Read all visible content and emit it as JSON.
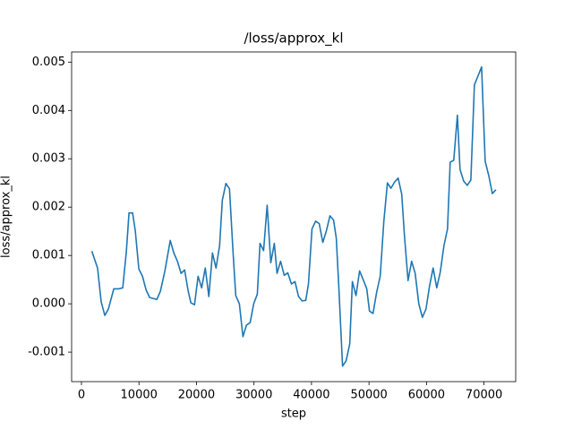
{
  "chart_data": {
    "type": "line",
    "title": "/loss/approx_kl",
    "x_label": "step",
    "y_label": "loss/approx_kl",
    "color": "#1f77b4",
    "x": [
      1800,
      2800,
      3430,
      4060,
      4680,
      5620,
      6550,
      7180,
      7800,
      8270,
      8890,
      9360,
      9980,
      10610,
      11230,
      11860,
      13100,
      13730,
      14510,
      15440,
      16070,
      16690,
      17320,
      17940,
      18560,
      19030,
      19660,
      20280,
      20900,
      21530,
      22150,
      22780,
      23400,
      24020,
      24490,
      25120,
      25740,
      26370,
      26830,
      27460,
      28080,
      28700,
      29330,
      29950,
      30580,
      31050,
      31670,
      32290,
      32920,
      33540,
      34010,
      34630,
      35260,
      35880,
      36510,
      37130,
      37750,
      38380,
      39000,
      39470,
      40090,
      40720,
      41340,
      41970,
      42590,
      43210,
      43840,
      44310,
      44770,
      45400,
      46020,
      46650,
      47110,
      47740,
      48360,
      48990,
      49610,
      50080,
      50700,
      51330,
      51950,
      52570,
      53200,
      53820,
      54450,
      55070,
      55690,
      56160,
      56790,
      57410,
      58030,
      58660,
      59280,
      59910,
      60530,
      61150,
      61780,
      62400,
      63030,
      63650,
      64120,
      64740,
      65370,
      65830,
      66460,
      67080,
      67710,
      68330,
      68950,
      69580,
      70200,
      70830,
      71450,
      72070
    ],
    "values": [
      0.00109,
      0.00074,
      4e-05,
      -0.00024,
      -0.00011,
      0.00031,
      0.00031,
      0.00033,
      0.00107,
      0.00188,
      0.00188,
      0.00151,
      0.00072,
      0.00057,
      0.00029,
      0.00013,
      9e-05,
      0.00026,
      0.00068,
      0.00131,
      0.00105,
      0.00088,
      0.00063,
      0.0007,
      0.00026,
      2e-05,
      -2e-05,
      0.00057,
      0.00033,
      0.00074,
      0.00015,
      0.00105,
      0.00074,
      0.0012,
      0.00214,
      0.00249,
      0.00238,
      0.00105,
      0.00017,
      0.0,
      -0.00068,
      -0.00044,
      -0.00039,
      0.0,
      0.0002,
      0.00125,
      0.0011,
      0.00204,
      0.00085,
      0.00125,
      0.00063,
      0.00088,
      0.00059,
      0.00064,
      0.00041,
      0.00046,
      0.00015,
      6e-05,
      7e-05,
      0.00041,
      0.00155,
      0.00171,
      0.00166,
      0.00127,
      0.00151,
      0.00182,
      0.00173,
      0.00136,
      0.00031,
      -0.00129,
      -0.00118,
      -0.00083,
      0.00046,
      0.00017,
      0.00068,
      0.0005,
      0.00031,
      -0.00015,
      -0.0002,
      0.00024,
      0.00057,
      0.00169,
      0.0025,
      0.00239,
      0.00252,
      0.0026,
      0.00227,
      0.00142,
      0.00048,
      0.00088,
      0.00063,
      0.0,
      -0.00028,
      -0.00011,
      0.00037,
      0.00074,
      0.00033,
      0.00066,
      0.0012,
      0.00155,
      0.00293,
      0.00297,
      0.0039,
      0.00278,
      0.00254,
      0.00245,
      0.00256,
      0.00453,
      0.00471,
      0.0049,
      0.00295,
      0.00265,
      0.00228,
      0.00236
    ],
    "xlim": [
      -1710,
      75510
    ],
    "ylim": [
      -0.00161,
      0.00521
    ],
    "xticks": [
      0,
      10000,
      20000,
      30000,
      40000,
      50000,
      60000,
      70000
    ],
    "yticks": [
      -0.001,
      {
        "value": 0,
        "label": "0.000"
      },
      0.001,
      0.002,
      0.003,
      0.004,
      0.005
    ]
  }
}
